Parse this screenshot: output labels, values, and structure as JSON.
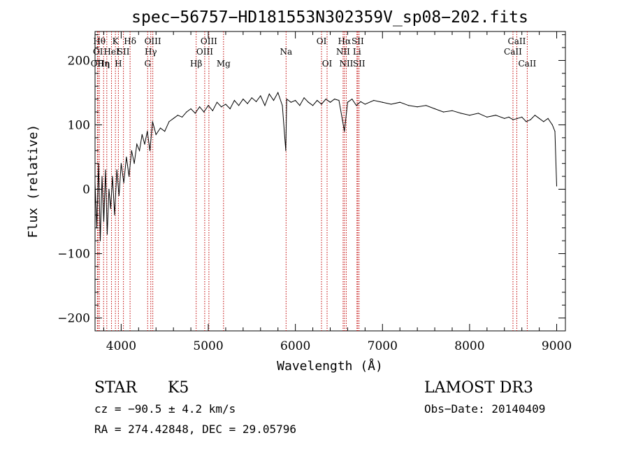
{
  "chart_data": {
    "type": "line",
    "title": "spec−56757−HD181553N302359V_sp08−202.fits",
    "xlabel": "Wavelength (Å)",
    "ylabel": "Flux (relative)",
    "xlim": [
      3700,
      9100
    ],
    "ylim": [
      -220,
      245
    ],
    "x_ticks": [
      4000,
      5000,
      6000,
      7000,
      8000,
      9000
    ],
    "x_tick_labels": [
      "4000",
      "5000",
      "6000",
      "7000",
      "8000",
      "9000"
    ],
    "y_ticks": [
      -200,
      -100,
      0,
      100,
      200
    ],
    "y_tick_labels": [
      "−200",
      "−100",
      "0",
      "100",
      "200"
    ],
    "grid": false,
    "series": [
      {
        "name": "flux",
        "color": "#000000",
        "x": [
          3700,
          3720,
          3740,
          3760,
          3780,
          3800,
          3820,
          3840,
          3860,
          3880,
          3900,
          3925,
          3950,
          3975,
          4000,
          4030,
          4060,
          4090,
          4120,
          4150,
          4180,
          4210,
          4240,
          4270,
          4300,
          4330,
          4360,
          4400,
          4450,
          4500,
          4550,
          4600,
          4650,
          4700,
          4750,
          4800,
          4850,
          4900,
          4950,
          5000,
          5050,
          5100,
          5150,
          5200,
          5250,
          5300,
          5350,
          5400,
          5450,
          5500,
          5550,
          5600,
          5650,
          5700,
          5750,
          5800,
          5850,
          5890,
          5900,
          5950,
          6000,
          6050,
          6100,
          6150,
          6200,
          6250,
          6300,
          6350,
          6400,
          6450,
          6500,
          6563,
          6600,
          6650,
          6700,
          6750,
          6800,
          6900,
          7000,
          7100,
          7200,
          7300,
          7400,
          7500,
          7600,
          7700,
          7800,
          7900,
          8000,
          8100,
          8200,
          8300,
          8400,
          8450,
          8500,
          8550,
          8600,
          8650,
          8700,
          8750,
          8800,
          8850,
          8900,
          8950,
          8980,
          9000
        ],
        "values": [
          10,
          -60,
          40,
          -80,
          20,
          -50,
          30,
          -70,
          0,
          -30,
          20,
          -40,
          30,
          -10,
          40,
          10,
          50,
          20,
          60,
          40,
          70,
          60,
          85,
          70,
          90,
          60,
          105,
          85,
          95,
          90,
          105,
          110,
          115,
          112,
          120,
          125,
          118,
          128,
          120,
          130,
          122,
          135,
          128,
          132,
          125,
          138,
          130,
          140,
          133,
          142,
          136,
          145,
          130,
          148,
          138,
          150,
          130,
          60,
          140,
          135,
          138,
          130,
          142,
          135,
          130,
          138,
          132,
          140,
          135,
          140,
          138,
          90,
          135,
          140,
          130,
          136,
          132,
          138,
          135,
          132,
          135,
          130,
          128,
          130,
          125,
          120,
          122,
          118,
          115,
          118,
          112,
          115,
          110,
          112,
          108,
          110,
          112,
          105,
          108,
          115,
          110,
          105,
          110,
          100,
          90,
          5
        ]
      }
    ],
    "line_markers": [
      {
        "x": 3727,
        "text": "OII",
        "row": 3
      },
      {
        "x": 3734,
        "text": "OI",
        "row": 2
      },
      {
        "x": 3750,
        "text": "Hθ",
        "row": 1
      },
      {
        "x": 3798,
        "text": "Hη",
        "row": 3
      },
      {
        "x": 3835,
        "text": "η",
        "row": 3
      },
      {
        "x": 3889,
        "text": "HeI",
        "row": 2
      },
      {
        "x": 3934,
        "text": "K",
        "row": 1
      },
      {
        "x": 3968,
        "text": "H",
        "row": 3
      },
      {
        "x": 4026,
        "text": "SII",
        "row": 2
      },
      {
        "x": 4102,
        "text": "Hδ",
        "row": 1
      },
      {
        "x": 4304,
        "text": "G",
        "row": 3
      },
      {
        "x": 4340,
        "text": "Hγ",
        "row": 2
      },
      {
        "x": 4363,
        "text": "OIII",
        "row": 1
      },
      {
        "x": 4861,
        "text": "Hβ",
        "row": 3
      },
      {
        "x": 4959,
        "text": "OIII",
        "row": 2
      },
      {
        "x": 5007,
        "text": "OIII",
        "row": 1
      },
      {
        "x": 5175,
        "text": "Mg",
        "row": 3
      },
      {
        "x": 5893,
        "text": "Na",
        "row": 2
      },
      {
        "x": 6300,
        "text": "OI",
        "row": 1
      },
      {
        "x": 6364,
        "text": "OI",
        "row": 3
      },
      {
        "x": 6548,
        "text": "NII",
        "row": 2
      },
      {
        "x": 6563,
        "text": "Hα",
        "row": 1
      },
      {
        "x": 6584,
        "text": "NII",
        "row": 3
      },
      {
        "x": 6707,
        "text": "Li",
        "row": 2
      },
      {
        "x": 6716,
        "text": "SII",
        "row": 1
      },
      {
        "x": 6731,
        "text": "SII",
        "row": 3
      },
      {
        "x": 8498,
        "text": "CaII",
        "row": 2
      },
      {
        "x": 8542,
        "text": "CaII",
        "row": 1
      },
      {
        "x": 8662,
        "text": "CaII",
        "row": 3
      }
    ],
    "marker_color": "#c00000"
  },
  "info": {
    "object_class": "STAR",
    "subclass": "K5",
    "survey": "LAMOST DR3",
    "cz": "cz = −90.5 ± 4.2 km/s",
    "obs_date": "Obs−Date: 20140409",
    "coords": "RA = 274.42848, DEC =  29.05796"
  }
}
